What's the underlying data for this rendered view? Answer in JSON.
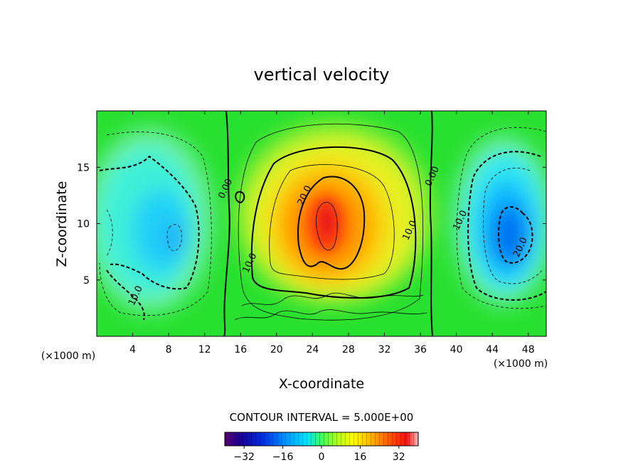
{
  "chart_data": {
    "type": "heatmap",
    "title": "vertical velocity",
    "xlabel": "X-coordinate",
    "ylabel": "Z-coordinate",
    "x_unit_label": "(×1000 m)",
    "x_unit_label_right": "(×1000 m)",
    "xlim": [
      0,
      50
    ],
    "ylim": [
      0,
      20
    ],
    "x_ticks": [
      4,
      8,
      12,
      16,
      20,
      24,
      28,
      32,
      36,
      40,
      44,
      48
    ],
    "y_ticks": [
      5,
      10,
      15
    ],
    "contour_interval_text": "CONTOUR INTERVAL = 5.000E+00",
    "contour_labels": [
      {
        "text": "0.00",
        "x": 14.6,
        "y": 13.0
      },
      {
        "text": "0.00",
        "x": 37.6,
        "y": 14.1
      },
      {
        "text": "20.0",
        "x": 23.4,
        "y": 12.4
      },
      {
        "text": "10.0",
        "x": 17.3,
        "y": 6.4
      },
      {
        "text": "10.0",
        "x": 35.1,
        "y": 9.3
      },
      {
        "text": "10.0",
        "x": 40.7,
        "y": 10.2
      },
      {
        "text": "20.0",
        "x": 47.4,
        "y": 7.8
      },
      {
        "text": "10.0",
        "x": 4.6,
        "y": 3.5
      }
    ],
    "colorbar": {
      "min": -40,
      "max": 40,
      "ticks": [
        -32,
        -16,
        0,
        16,
        32
      ],
      "tick_labels": [
        "−32",
        "−16",
        "0",
        "16",
        "32"
      ]
    },
    "field_features": [
      {
        "name": "updraft core",
        "x": 25.5,
        "z": 10,
        "value": 35
      },
      {
        "name": "left downdraft",
        "x": 8,
        "z": 9,
        "value": -20
      },
      {
        "name": "right downdraft",
        "x": 45.5,
        "z": 9,
        "value": -25
      }
    ],
    "grid": false,
    "legend": "colorbar-bottom"
  }
}
